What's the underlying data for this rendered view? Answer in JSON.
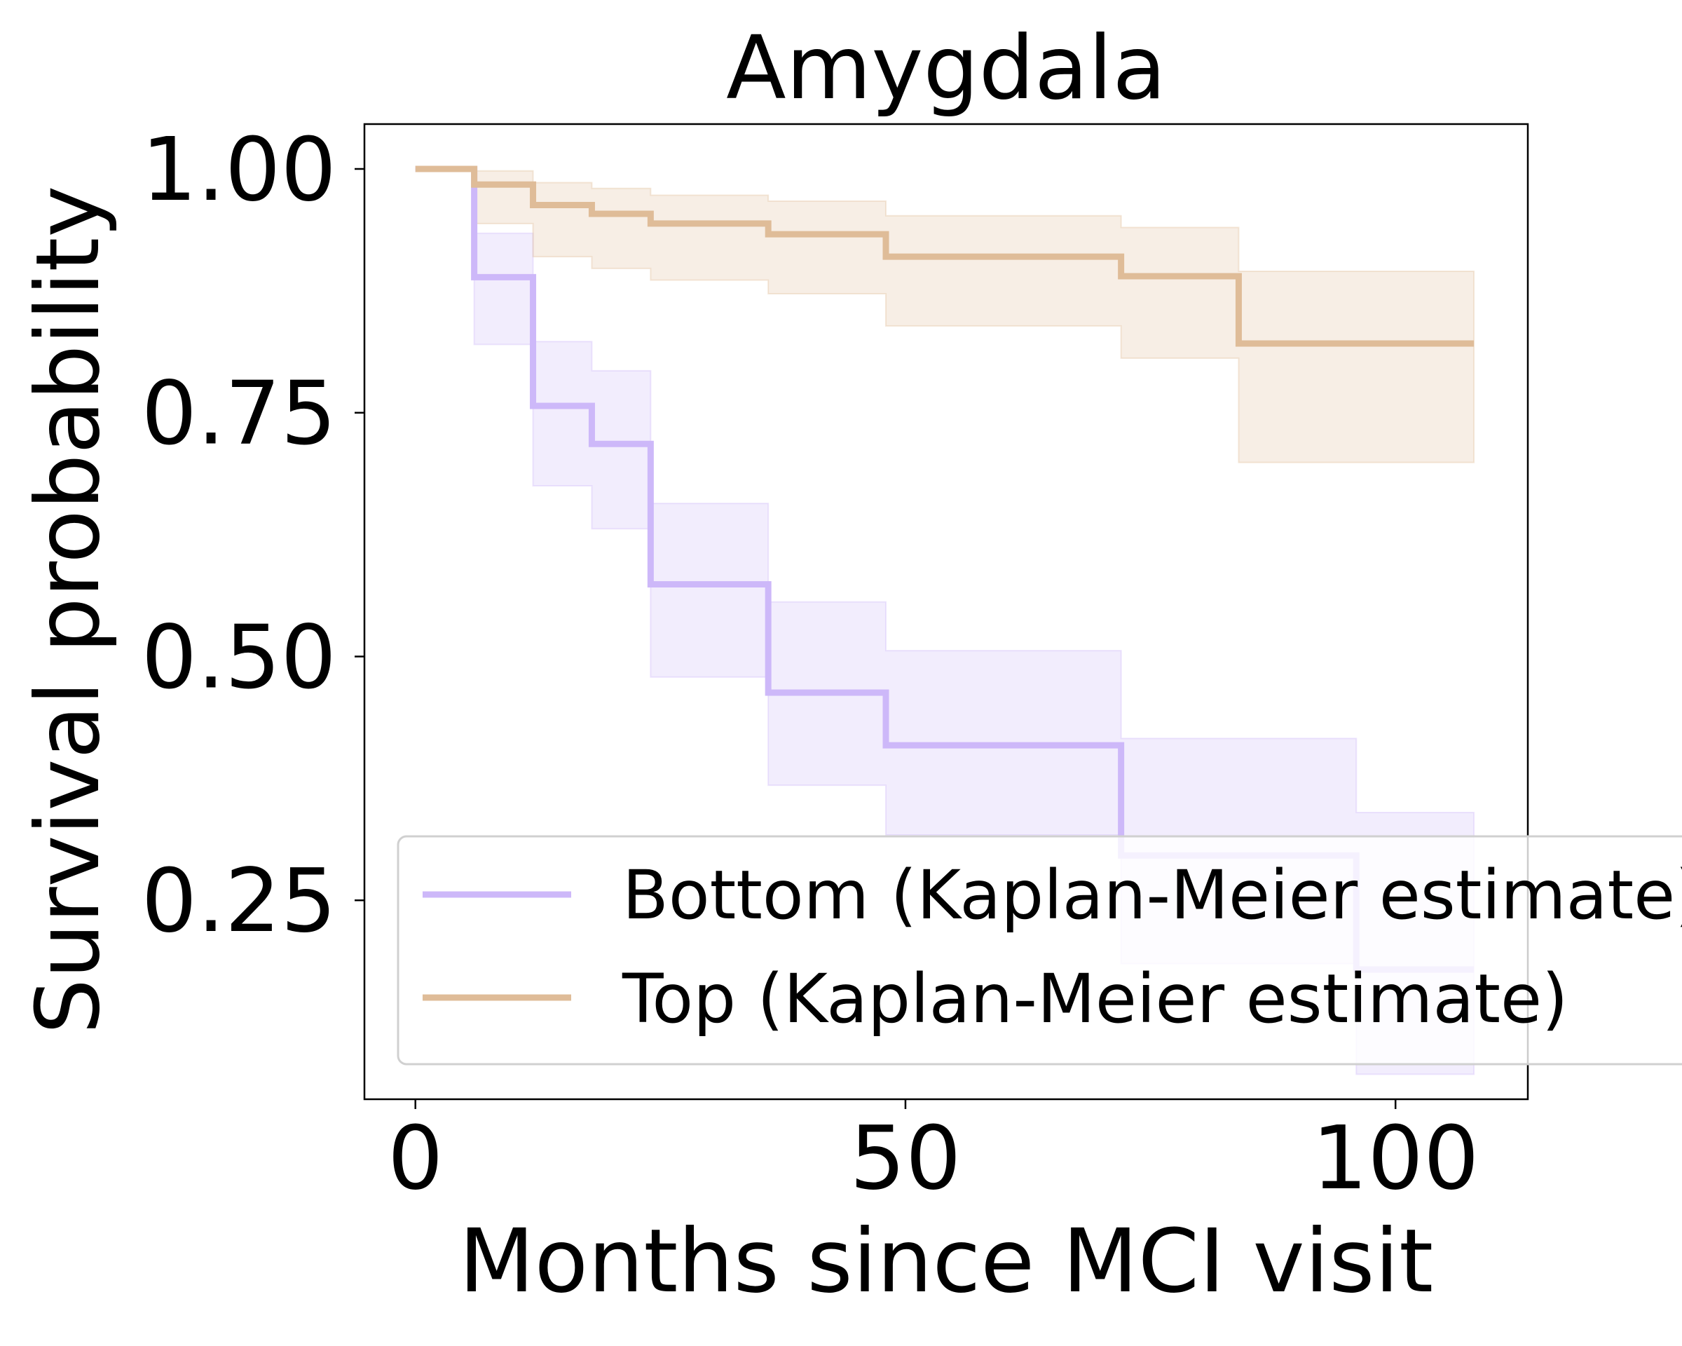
{
  "chart_data": {
    "type": "line",
    "step": true,
    "title": "Amygdala",
    "xlabel": "Months since MCI visit",
    "ylabel": "Survival probability",
    "xlim": [
      -5.2,
      113.5
    ],
    "ylim": [
      0.046,
      1.046
    ],
    "xticks": [
      0,
      50,
      100
    ],
    "xtick_labels": [
      "0",
      "50",
      "100"
    ],
    "yticks": [
      0.25,
      0.5,
      0.75,
      1.0
    ],
    "ytick_labels": [
      "0.25",
      "0.50",
      "0.75",
      "1.00"
    ],
    "grid": false,
    "legend_position": "lower-right",
    "series": [
      {
        "name": "Bottom (Kaplan-Meier estimate)",
        "color": "#cdb8f9",
        "times": [
          0,
          6,
          12,
          18,
          24,
          36,
          48,
          72,
          96,
          108
        ],
        "survival": [
          1.0,
          0.889,
          0.757,
          0.718,
          0.574,
          0.463,
          0.409,
          0.296,
          0.179,
          0.179
        ],
        "ci_lower": [
          1.0,
          0.82,
          0.675,
          0.631,
          0.479,
          0.368,
          0.317,
          0.185,
          0.0716,
          0.0716
        ],
        "ci_upper": [
          1.0,
          0.934,
          0.823,
          0.793,
          0.657,
          0.556,
          0.506,
          0.416,
          0.34,
          0.34
        ]
      },
      {
        "name": "Top (Kaplan-Meier estimate)",
        "color": "#dfbc98",
        "times": [
          0,
          6,
          12,
          18,
          24,
          36,
          48,
          72,
          84,
          108
        ],
        "survival": [
          1.0,
          0.984,
          0.963,
          0.954,
          0.944,
          0.933,
          0.91,
          0.89,
          0.821,
          0.821
        ],
        "ci_lower": [
          1.0,
          0.944,
          0.91,
          0.898,
          0.886,
          0.872,
          0.839,
          0.806,
          0.699,
          0.699
        ],
        "ci_upper": [
          1.0,
          0.998,
          0.986,
          0.98,
          0.973,
          0.967,
          0.952,
          0.94,
          0.895,
          0.895
        ]
      }
    ]
  }
}
